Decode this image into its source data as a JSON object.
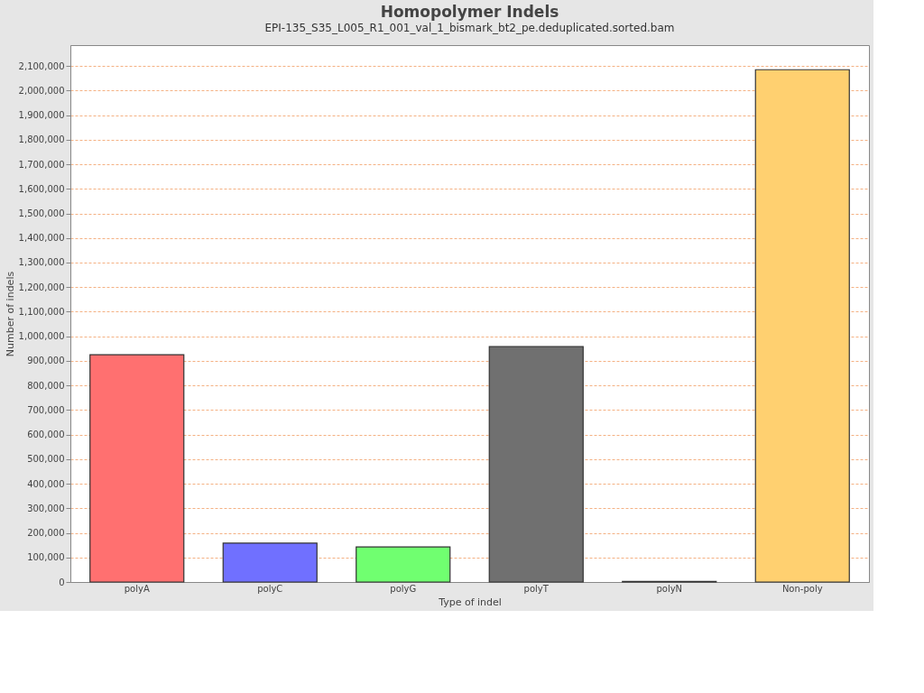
{
  "chart_data": {
    "type": "bar",
    "title": "Homopolymer Indels",
    "subtitle": "EPI-135_S35_L005_R1_001_val_1_bismark_bt2_pe.deduplicated.sorted.bam",
    "xlabel": "Type of indel",
    "ylabel": "Number of indels",
    "categories": [
      "polyA",
      "polyC",
      "polyG",
      "polyT",
      "polyN",
      "Non-poly"
    ],
    "values": [
      925000,
      158000,
      143000,
      958000,
      2000,
      2085000
    ],
    "colors": [
      "#ff7070",
      "#7070ff",
      "#70ff70",
      "#707070",
      "#c0c0c0",
      "#ffd070"
    ],
    "ylim": [
      0,
      2185000
    ],
    "yticks": [
      0,
      {
        "value": 100000,
        "label": "100,000"
      },
      {
        "value": 200000,
        "label": "200,000"
      },
      {
        "value": 300000,
        "label": "300,000"
      },
      {
        "value": 400000,
        "label": "400,000"
      },
      {
        "value": 500000,
        "label": "500,000"
      },
      {
        "value": 600000,
        "label": "600,000"
      },
      {
        "value": 700000,
        "label": "700,000"
      },
      {
        "value": 800000,
        "label": "800,000"
      },
      {
        "value": 900000,
        "label": "900,000"
      },
      {
        "value": 1000000,
        "label": "1,000,000"
      },
      {
        "value": 1100000,
        "label": "1,100,000"
      },
      {
        "value": 1200000,
        "label": "1,200,000"
      },
      {
        "value": 1300000,
        "label": "1,300,000"
      },
      {
        "value": 1400000,
        "label": "1,400,000"
      },
      {
        "value": 1500000,
        "label": "1,500,000"
      },
      {
        "value": 1600000,
        "label": "1,600,000"
      },
      {
        "value": 1700000,
        "label": "1,700,000"
      },
      {
        "value": 1800000,
        "label": "1,800,000"
      },
      {
        "value": 1900000,
        "label": "1,900,000"
      },
      {
        "value": 2000000,
        "label": "2,000,000"
      },
      {
        "value": 2100000,
        "label": "2,100,000"
      }
    ],
    "grid": "y"
  }
}
